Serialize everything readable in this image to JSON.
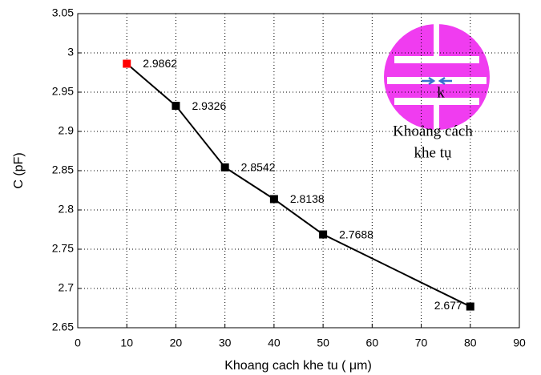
{
  "chart_data": {
    "type": "line",
    "x": [
      10,
      20,
      30,
      40,
      50,
      80
    ],
    "series": [
      {
        "color": "#000000",
        "point_colors": [
          "#ff0000",
          "#000000",
          "#000000",
          "#000000",
          "#000000",
          "#000000"
        ],
        "values": [
          2.9862,
          2.9326,
          2.8542,
          2.8138,
          2.7688,
          2.677
        ]
      }
    ],
    "xlabel": "Khoang cach khe tu ( μm)",
    "ylabel": "C (pF)",
    "xlim": [
      0,
      90
    ],
    "xticks": [
      0,
      10,
      20,
      30,
      40,
      50,
      60,
      70,
      80,
      90
    ],
    "ylim": [
      2.65,
      3.05
    ],
    "yticks": [
      2.65,
      2.7,
      2.75,
      2.8,
      2.85,
      2.9,
      2.95,
      3,
      3.05
    ],
    "grid": true,
    "inset_labels": [
      "k",
      "Khoảng cách",
      "khe tụ"
    ]
  }
}
